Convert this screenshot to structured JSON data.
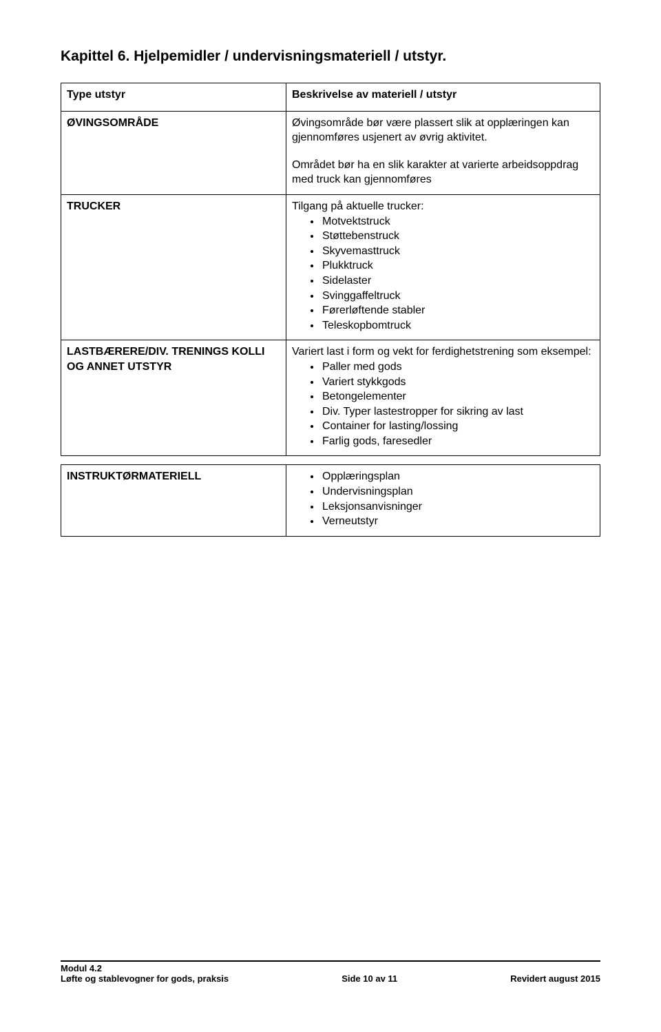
{
  "chapter_title": "Kapittel 6. Hjelpemidler / undervisningsmateriell / utstyr.",
  "table1": {
    "row1": {
      "left": "Type utstyr",
      "right": "Beskrivelse av materiell / utstyr"
    },
    "row2": {
      "left": "ØVINGSOMRÅDE",
      "right_p1": "Øvingsområde bør være plassert slik at opplæringen kan gjennomføres usjenert av øvrig aktivitet.",
      "right_p2": "Området bør ha en slik karakter at varierte arbeidsoppdrag med truck kan gjennomføres"
    },
    "row3": {
      "left": "TRUCKER",
      "right_intro": "Tilgang på aktuelle trucker:",
      "items": [
        "Motvektstruck",
        "Støttebenstruck",
        "Skyvemasttruck",
        "Plukktruck",
        "Sidelaster",
        "Svinggaffeltruck",
        "Førerløftende stabler",
        "Teleskopbomtruck"
      ]
    },
    "row4": {
      "left": "LASTBÆRERE/DIV. TRENINGS KOLLI OG ANNET UTSTYR",
      "right_intro": "Variert last i form og vekt for ferdighetstrening som eksempel:",
      "items": [
        "Paller med gods",
        "Variert stykkgods",
        "Betongelementer",
        "Div. Typer lastestropper for sikring av last",
        "Container for lasting/lossing",
        "Farlig gods, faresedler"
      ]
    }
  },
  "table2": {
    "left": "INSTRUKTØRMATERIELL",
    "items": [
      "Opplæringsplan",
      "Undervisningsplan",
      "Leksjonsanvisninger",
      "Verneutstyr"
    ]
  },
  "footer": {
    "line1": "Modul 4.2",
    "left": "Løfte og stablevogner for gods, praksis",
    "center": "Side 10 av 11",
    "right": "Revidert august 2015"
  }
}
